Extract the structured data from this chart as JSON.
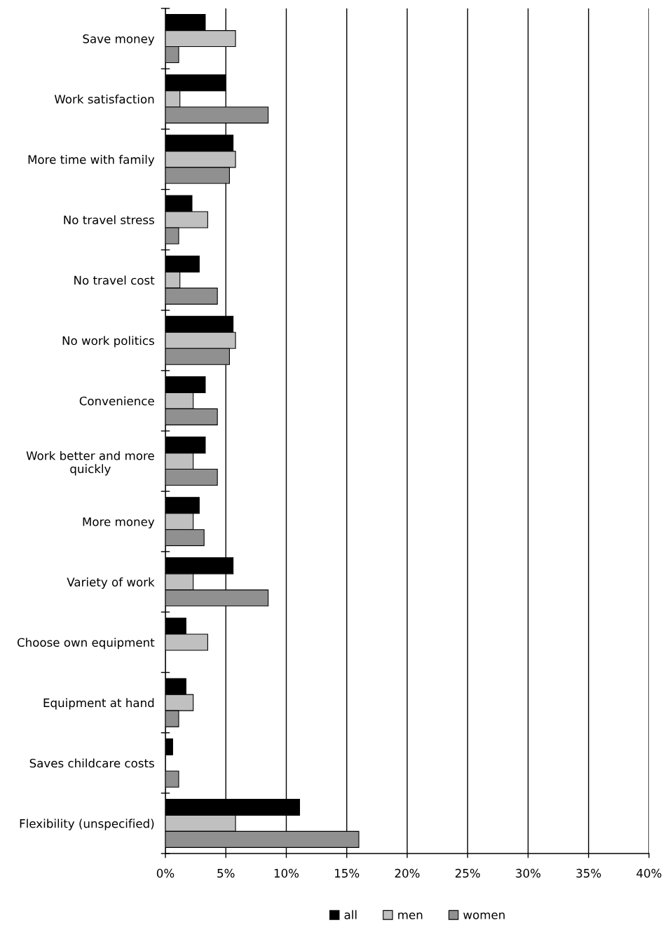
{
  "chart_data": {
    "type": "bar",
    "orientation": "horizontal",
    "categories": [
      "Save money",
      "Work satisfaction",
      "More time with family",
      "No travel stress",
      "No travel cost",
      "No work politics",
      "Convenience",
      "Work better and more quickly",
      "More money",
      "Variety of work",
      "Choose own equipment",
      "Equipment at hand",
      "Saves childcare costs",
      "Flexibility (unspecified)"
    ],
    "series": [
      {
        "name": "all",
        "color": "#000000",
        "values": [
          3.3,
          5.0,
          5.6,
          2.2,
          2.8,
          5.6,
          3.3,
          3.3,
          2.8,
          5.6,
          1.7,
          1.7,
          0.6,
          11.1
        ]
      },
      {
        "name": "men",
        "color": "#c0c0c0",
        "values": [
          5.8,
          1.2,
          5.8,
          3.5,
          1.2,
          5.8,
          2.3,
          2.3,
          2.3,
          2.3,
          3.5,
          2.3,
          null,
          5.8
        ]
      },
      {
        "name": "women",
        "color": "#909090",
        "values": [
          1.1,
          8.5,
          5.3,
          1.1,
          4.3,
          5.3,
          4.3,
          4.3,
          3.2,
          8.5,
          null,
          1.1,
          1.1,
          16.0
        ]
      }
    ],
    "xlim": [
      0,
      40
    ],
    "xticks": [
      {
        "value": 0,
        "label": "0%"
      },
      {
        "value": 5,
        "label": "5%"
      },
      {
        "value": 10,
        "label": "10%"
      },
      {
        "value": 15,
        "label": "15%"
      },
      {
        "value": 20,
        "label": "20%"
      },
      {
        "value": 25,
        "label": "25%"
      },
      {
        "value": 30,
        "label": "30%"
      },
      {
        "value": 35,
        "label": "35%"
      },
      {
        "value": 40,
        "label": "40%"
      }
    ],
    "grid": "x",
    "legend": "bottom"
  }
}
